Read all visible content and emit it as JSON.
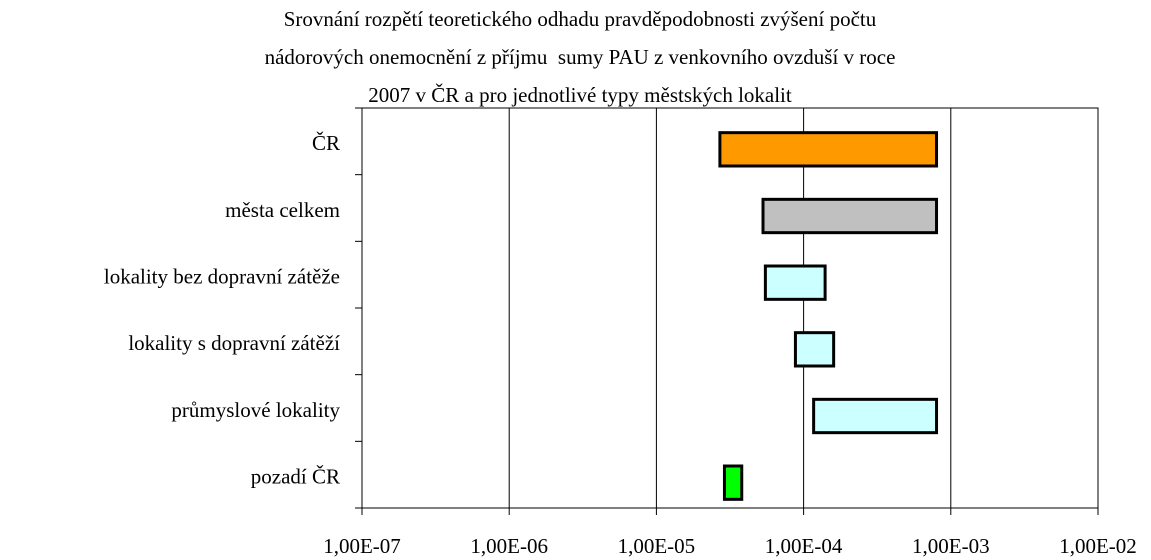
{
  "chart_data": {
    "type": "range",
    "title": [
      "Srovnání rozpětí teoretického odhadu pravděpodobnosti zvýšení počtu",
      "nádorových onemocnění z příjmu  sumy PAU z venkovního ovzduší v roce",
      "2007 v ČR a pro jednotlivé typy městských lokalit"
    ],
    "categories": [
      "ČR",
      "města celkem",
      "lokality bez dopravní zátěže",
      "lokality s dopravní zátěží",
      "průmyslové lokality",
      "pozadí ČR"
    ],
    "low": [
      2.7e-05,
      5.3e-05,
      5.5e-05,
      8.8e-05,
      0.000117,
      2.9e-05
    ],
    "high": [
      0.0008,
      0.0008,
      0.00014,
      0.00016,
      0.0008,
      3.8e-05
    ],
    "colors": [
      "#ff9900",
      "#c0c0c0",
      "#ccffff",
      "#ccffff",
      "#ccffff",
      "#00ff00"
    ],
    "xlim": [
      1e-07,
      0.01
    ],
    "xlog": true,
    "xticks": [
      {
        "value": 1e-07,
        "label": "1,00E-07"
      },
      {
        "value": 1e-06,
        "label": "1,00E-06"
      },
      {
        "value": 1e-05,
        "label": "1,00E-05"
      },
      {
        "value": 0.0001,
        "label": "1,00E-04"
      },
      {
        "value": 0.001,
        "label": "1,00E-03"
      },
      {
        "value": 0.01,
        "label": "1,00E-02"
      }
    ],
    "grid": true
  }
}
